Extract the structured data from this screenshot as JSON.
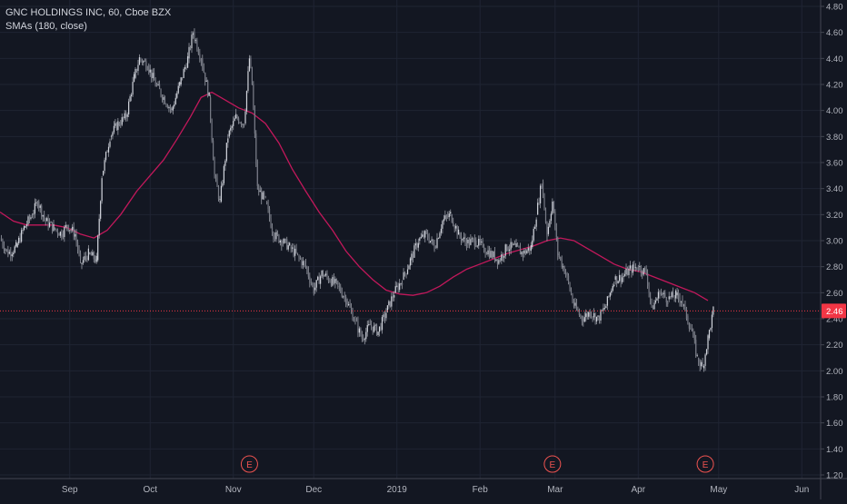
{
  "legend": {
    "title": "GNC HOLDINGS INC, 60, Cboe BZX",
    "indicator": "SMAs (180, close)"
  },
  "colors": {
    "background": "#131722",
    "grid": "#1f2433",
    "up": "#26a69a",
    "down": "#ef5350",
    "candle_neutral": "#b2b5be",
    "sma": "#c2185b",
    "price_line": "#f23645",
    "axis_text": "#b2b5be"
  },
  "chart_data": {
    "type": "line",
    "title": "GNC HOLDINGS INC, 60, Cboe BZX",
    "xlabel": "",
    "ylabel": "",
    "ylim": [
      1.2,
      4.8
    ],
    "x_ticks": [
      "Sep",
      "Oct",
      "Nov",
      "Dec",
      "2019",
      "Feb",
      "Mar",
      "Apr",
      "May",
      "Jun"
    ],
    "y_ticks": [
      "1.20",
      "1.40",
      "1.60",
      "1.80",
      "2.00",
      "2.20",
      "2.40",
      "2.60",
      "2.80",
      "3.00",
      "3.20",
      "3.40",
      "3.60",
      "3.80",
      "4.00",
      "4.20",
      "4.40",
      "4.60",
      "4.80"
    ],
    "last_price": "2.46",
    "last_price_value": 2.46,
    "earnings_markers": [
      {
        "date": "2018-11-07",
        "label": "E"
      },
      {
        "date": "2019-02-28",
        "label": "E"
      },
      {
        "date": "2019-04-26",
        "label": "E"
      }
    ],
    "series": [
      {
        "name": "GNC HOLDINGS INC",
        "style": "candles",
        "points": [
          [
            "2018-08-06",
            3.02
          ],
          [
            "2018-08-09",
            2.9
          ],
          [
            "2018-08-12",
            2.95
          ],
          [
            "2018-08-15",
            3.1
          ],
          [
            "2018-08-18",
            3.2
          ],
          [
            "2018-08-20",
            3.3
          ],
          [
            "2018-08-23",
            3.15
          ],
          [
            "2018-08-26",
            3.1
          ],
          [
            "2018-08-29",
            3.05
          ],
          [
            "2018-08-31",
            3.12
          ],
          [
            "2018-09-03",
            3.05
          ],
          [
            "2018-09-05",
            2.82
          ],
          [
            "2018-09-08",
            2.9
          ],
          [
            "2018-09-11",
            2.85
          ],
          [
            "2018-09-13",
            3.5
          ],
          [
            "2018-09-16",
            3.8
          ],
          [
            "2018-09-19",
            3.9
          ],
          [
            "2018-09-22",
            3.95
          ],
          [
            "2018-09-25",
            4.25
          ],
          [
            "2018-09-27",
            4.4
          ],
          [
            "2018-09-30",
            4.35
          ],
          [
            "2018-10-03",
            4.2
          ],
          [
            "2018-10-06",
            4.1
          ],
          [
            "2018-10-09",
            4.0
          ],
          [
            "2018-10-12",
            4.2
          ],
          [
            "2018-10-15",
            4.4
          ],
          [
            "2018-10-17",
            4.6
          ],
          [
            "2018-10-20",
            4.4
          ],
          [
            "2018-10-23",
            4.1
          ],
          [
            "2018-10-25",
            3.5
          ],
          [
            "2018-10-27",
            3.3
          ],
          [
            "2018-10-30",
            3.8
          ],
          [
            "2018-11-02",
            3.95
          ],
          [
            "2018-11-05",
            3.9
          ],
          [
            "2018-11-07",
            4.4
          ],
          [
            "2018-11-08",
            4.2
          ],
          [
            "2018-11-10",
            3.4
          ],
          [
            "2018-11-13",
            3.3
          ],
          [
            "2018-11-16",
            3.05
          ],
          [
            "2018-11-19",
            3.0
          ],
          [
            "2018-11-22",
            2.95
          ],
          [
            "2018-11-25",
            2.88
          ],
          [
            "2018-11-28",
            2.8
          ],
          [
            "2018-12-01",
            2.62
          ],
          [
            "2018-12-04",
            2.75
          ],
          [
            "2018-12-07",
            2.7
          ],
          [
            "2018-12-10",
            2.65
          ],
          [
            "2018-12-13",
            2.55
          ],
          [
            "2018-12-16",
            2.4
          ],
          [
            "2018-12-19",
            2.25
          ],
          [
            "2018-12-22",
            2.35
          ],
          [
            "2018-12-25",
            2.3
          ],
          [
            "2018-12-28",
            2.45
          ],
          [
            "2018-12-31",
            2.6
          ],
          [
            "2019-01-03",
            2.7
          ],
          [
            "2019-01-06",
            2.85
          ],
          [
            "2019-01-09",
            3.0
          ],
          [
            "2019-01-12",
            3.05
          ],
          [
            "2019-01-15",
            2.95
          ],
          [
            "2019-01-18",
            3.15
          ],
          [
            "2019-01-21",
            3.2
          ],
          [
            "2019-01-24",
            3.05
          ],
          [
            "2019-01-27",
            2.98
          ],
          [
            "2019-01-30",
            3.0
          ],
          [
            "2019-02-02",
            2.95
          ],
          [
            "2019-02-05",
            2.9
          ],
          [
            "2019-02-08",
            2.85
          ],
          [
            "2019-02-11",
            2.95
          ],
          [
            "2019-02-14",
            2.95
          ],
          [
            "2019-02-17",
            2.9
          ],
          [
            "2019-02-20",
            2.95
          ],
          [
            "2019-02-22",
            3.2
          ],
          [
            "2019-02-24",
            3.45
          ],
          [
            "2019-02-26",
            3.05
          ],
          [
            "2019-02-28",
            3.3
          ],
          [
            "2019-03-02",
            2.9
          ],
          [
            "2019-03-05",
            2.75
          ],
          [
            "2019-03-08",
            2.5
          ],
          [
            "2019-03-11",
            2.4
          ],
          [
            "2019-03-14",
            2.45
          ],
          [
            "2019-03-17",
            2.4
          ],
          [
            "2019-03-20",
            2.5
          ],
          [
            "2019-03-23",
            2.7
          ],
          [
            "2019-03-26",
            2.72
          ],
          [
            "2019-03-29",
            2.78
          ],
          [
            "2019-04-01",
            2.8
          ],
          [
            "2019-04-04",
            2.75
          ],
          [
            "2019-04-06",
            2.48
          ],
          [
            "2019-04-09",
            2.6
          ],
          [
            "2019-04-12",
            2.55
          ],
          [
            "2019-04-15",
            2.58
          ],
          [
            "2019-04-17",
            2.55
          ],
          [
            "2019-04-19",
            2.42
          ],
          [
            "2019-04-21",
            2.3
          ],
          [
            "2019-04-23",
            2.1
          ],
          [
            "2019-04-25",
            2.02
          ],
          [
            "2019-04-27",
            2.25
          ],
          [
            "2019-04-29",
            2.46
          ]
        ]
      },
      {
        "name": "SMA (180, close)",
        "style": "line",
        "points": [
          [
            "2018-08-06",
            3.22
          ],
          [
            "2018-08-11",
            3.15
          ],
          [
            "2018-08-16",
            3.12
          ],
          [
            "2018-08-21",
            3.12
          ],
          [
            "2018-08-26",
            3.12
          ],
          [
            "2018-08-31",
            3.1
          ],
          [
            "2018-09-05",
            3.05
          ],
          [
            "2018-09-10",
            3.02
          ],
          [
            "2018-09-15",
            3.08
          ],
          [
            "2018-09-20",
            3.2
          ],
          [
            "2018-09-26",
            3.38
          ],
          [
            "2018-10-01",
            3.5
          ],
          [
            "2018-10-06",
            3.62
          ],
          [
            "2018-10-11",
            3.78
          ],
          [
            "2018-10-16",
            3.95
          ],
          [
            "2018-10-20",
            4.1
          ],
          [
            "2018-10-24",
            4.14
          ],
          [
            "2018-10-29",
            4.08
          ],
          [
            "2018-11-03",
            4.02
          ],
          [
            "2018-11-08",
            3.98
          ],
          [
            "2018-11-13",
            3.9
          ],
          [
            "2018-11-18",
            3.75
          ],
          [
            "2018-11-23",
            3.55
          ],
          [
            "2018-11-28",
            3.38
          ],
          [
            "2018-12-03",
            3.22
          ],
          [
            "2018-12-08",
            3.08
          ],
          [
            "2018-12-13",
            2.92
          ],
          [
            "2018-12-18",
            2.8
          ],
          [
            "2018-12-23",
            2.7
          ],
          [
            "2018-12-28",
            2.62
          ],
          [
            "2019-01-02",
            2.59
          ],
          [
            "2019-01-07",
            2.58
          ],
          [
            "2019-01-12",
            2.6
          ],
          [
            "2019-01-17",
            2.65
          ],
          [
            "2019-01-22",
            2.72
          ],
          [
            "2019-01-27",
            2.78
          ],
          [
            "2019-02-01",
            2.82
          ],
          [
            "2019-02-06",
            2.86
          ],
          [
            "2019-02-11",
            2.9
          ],
          [
            "2019-02-16",
            2.93
          ],
          [
            "2019-02-21",
            2.96
          ],
          [
            "2019-02-26",
            3.0
          ],
          [
            "2019-03-03",
            3.02
          ],
          [
            "2019-03-08",
            3.0
          ],
          [
            "2019-03-13",
            2.94
          ],
          [
            "2019-03-18",
            2.88
          ],
          [
            "2019-03-23",
            2.82
          ],
          [
            "2019-03-28",
            2.78
          ],
          [
            "2019-04-02",
            2.76
          ],
          [
            "2019-04-07",
            2.72
          ],
          [
            "2019-04-12",
            2.68
          ],
          [
            "2019-04-17",
            2.64
          ],
          [
            "2019-04-22",
            2.6
          ],
          [
            "2019-04-27",
            2.54
          ]
        ]
      }
    ]
  }
}
